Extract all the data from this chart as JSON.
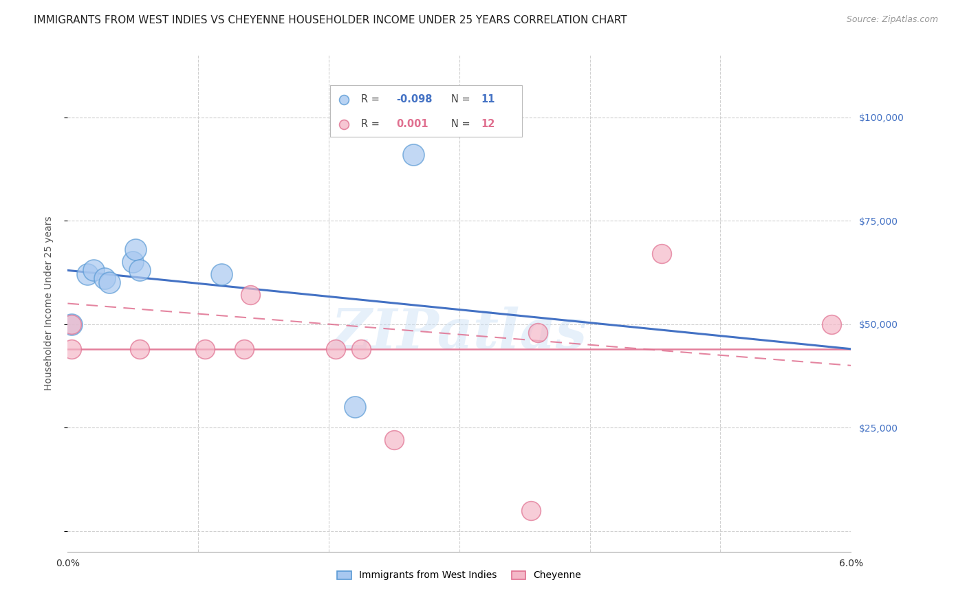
{
  "title": "IMMIGRANTS FROM WEST INDIES VS CHEYENNE HOUSEHOLDER INCOME UNDER 25 YEARS CORRELATION CHART",
  "source": "Source: ZipAtlas.com",
  "ylabel": "Householder Income Under 25 years",
  "xlim": [
    0.0,
    6.0
  ],
  "ylim": [
    -5000,
    115000
  ],
  "yticks": [
    0,
    25000,
    50000,
    75000,
    100000
  ],
  "ytick_labels": [
    "",
    "$25,000",
    "$50,000",
    "$75,000",
    "$100,000"
  ],
  "xticks": [
    0.0,
    1.0,
    2.0,
    3.0,
    4.0,
    5.0,
    6.0
  ],
  "xtick_labels": [
    "0.0%",
    "",
    "",
    "",
    "",
    "",
    "6.0%"
  ],
  "legend_label_blue": "Immigrants from West Indies",
  "legend_label_pink": "Cheyenne",
  "watermark": "ZIPatlas",
  "blue_color": "#a8c8f0",
  "blue_edge": "#5b9bd5",
  "blue_line": "#4472c4",
  "pink_color": "#f4b8c8",
  "pink_edge": "#e07090",
  "pink_line": "#e07090",
  "right_tick_color": "#4472c4",
  "background_color": "#ffffff",
  "grid_color": "#d0d0d0",
  "blue_scatter_x": [
    0.03,
    0.15,
    0.2,
    0.28,
    0.32,
    0.5,
    0.52,
    0.55,
    1.18,
    2.2,
    2.65
  ],
  "blue_scatter_y": [
    50000,
    62000,
    63000,
    61000,
    60000,
    65000,
    68000,
    63000,
    62000,
    30000,
    91000
  ],
  "pink_scatter_x": [
    0.03,
    0.03,
    0.55,
    1.05,
    1.35,
    1.4,
    2.05,
    2.25,
    2.5,
    3.6,
    4.55,
    5.85
  ],
  "pink_scatter_y": [
    50000,
    44000,
    44000,
    44000,
    44000,
    57000,
    44000,
    44000,
    22000,
    48000,
    67000,
    50000
  ],
  "pink_low_x": [
    3.55
  ],
  "pink_low_y": [
    5000
  ],
  "blue_line_x0": 0.0,
  "blue_line_x1": 6.0,
  "blue_line_y0": 63000,
  "blue_line_y1": 44000,
  "pink_dash_x0": 0.0,
  "pink_dash_x1": 6.0,
  "pink_dash_y0": 55000,
  "pink_dash_y1": 40000,
  "pink_flat_y": 44000,
  "blue_scatter_size": 500,
  "pink_scatter_size": 400,
  "title_fontsize": 11,
  "axis_label_fontsize": 10,
  "tick_fontsize": 10,
  "source_fontsize": 9
}
